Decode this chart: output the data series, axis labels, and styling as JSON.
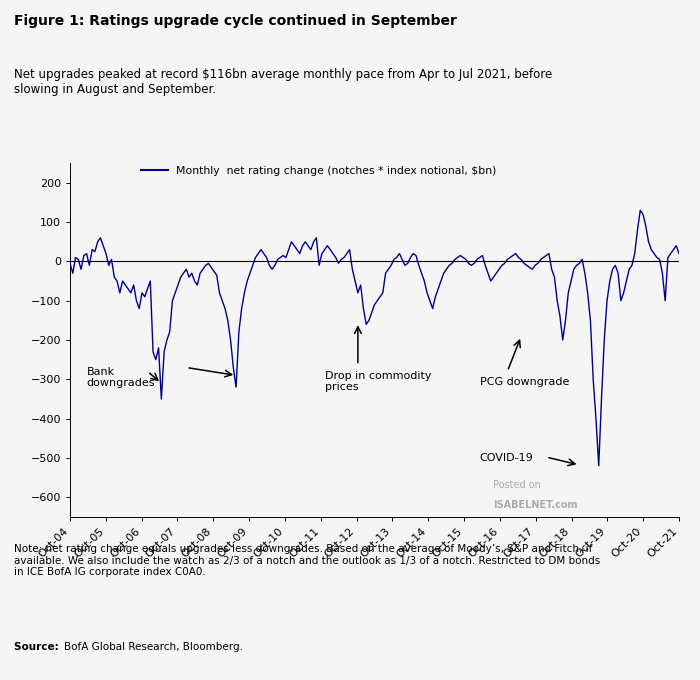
{
  "title": "Figure 1: Ratings upgrade cycle continued in September",
  "subtitle": "Net upgrades peaked at record $116bn average monthly pace from Apr to Jul 2021, before\nslowing in August and September.",
  "legend_label": "Monthly  net rating change (notches * index notional, $bn)",
  "note": "Note: net rating change equals upgrades less downgrades. Based on the average of Moody’s, S&P and Fitch, if\navailable. We also include the watch as 2/3 of a notch and the outlook as 1/3 of a notch. Restricted to DM bonds\nin ICE BofA IG corporate index C0A0.",
  "source_bold": "Source: ",
  "source_regular": "BofA Global Research, Bloomberg.",
  "line_color": "#00008B",
  "background_color": "#f5f5f5",
  "ylim": [
    -650,
    250
  ],
  "yticks": [
    -600,
    -500,
    -400,
    -300,
    -200,
    -100,
    0,
    100,
    200
  ],
  "x_labels": [
    "Oct-04",
    "Oct-05",
    "Oct-06",
    "Oct-07",
    "Oct-08",
    "Oct-09",
    "Oct-10",
    "Oct-11",
    "Oct-12",
    "Oct-13",
    "Oct-14",
    "Oct-15",
    "Oct-16",
    "Oct-17",
    "Oct-18",
    "Oct-19",
    "Oct-20",
    "Oct-21"
  ],
  "watermark_line1": "Posted on",
  "watermark_line2": "ISABELNET.com",
  "data_y": [
    -5,
    -30,
    10,
    5,
    -20,
    15,
    20,
    -10,
    30,
    25,
    50,
    60,
    40,
    20,
    -10,
    5,
    -40,
    -50,
    -80,
    -50,
    -60,
    -70,
    -80,
    -60,
    -100,
    -120,
    -80,
    -90,
    -70,
    -50,
    -230,
    -250,
    -220,
    -350,
    -230,
    -200,
    -180,
    -100,
    -80,
    -60,
    -40,
    -30,
    -20,
    -40,
    -30,
    -50,
    -60,
    -30,
    -20,
    -10,
    -5,
    -15,
    -25,
    -35,
    -80,
    -100,
    -120,
    -150,
    -200,
    -270,
    -320,
    -180,
    -120,
    -80,
    -50,
    -30,
    -10,
    10,
    20,
    30,
    20,
    10,
    -10,
    -20,
    -10,
    5,
    10,
    15,
    10,
    30,
    50,
    40,
    30,
    20,
    40,
    50,
    40,
    30,
    50,
    60,
    -10,
    20,
    30,
    40,
    30,
    20,
    10,
    -5,
    5,
    10,
    20,
    30,
    -20,
    -50,
    -80,
    -60,
    -120,
    -160,
    -150,
    -130,
    -110,
    -100,
    -90,
    -80,
    -30,
    -20,
    -10,
    5,
    10,
    20,
    5,
    -10,
    -5,
    10,
    20,
    15,
    -10,
    -30,
    -50,
    -80,
    -100,
    -120,
    -90,
    -70,
    -50,
    -30,
    -20,
    -10,
    -5,
    5,
    10,
    15,
    10,
    5,
    -5,
    -10,
    -5,
    5,
    10,
    15,
    -10,
    -30,
    -50,
    -40,
    -30,
    -20,
    -10,
    -5,
    5,
    10,
    15,
    20,
    10,
    5,
    -5,
    -10,
    -15,
    -20,
    -10,
    -5,
    5,
    10,
    15,
    20,
    -20,
    -40,
    -100,
    -140,
    -200,
    -150,
    -80,
    -50,
    -20,
    -10,
    -5,
    5,
    -30,
    -80,
    -150,
    -300,
    -400,
    -520,
    -350,
    -200,
    -100,
    -50,
    -20,
    -10,
    -30,
    -100,
    -80,
    -50,
    -20,
    -10,
    20,
    80,
    130,
    120,
    90,
    50,
    30,
    20,
    10,
    5,
    -30,
    -100,
    10,
    20,
    30,
    40,
    20
  ]
}
